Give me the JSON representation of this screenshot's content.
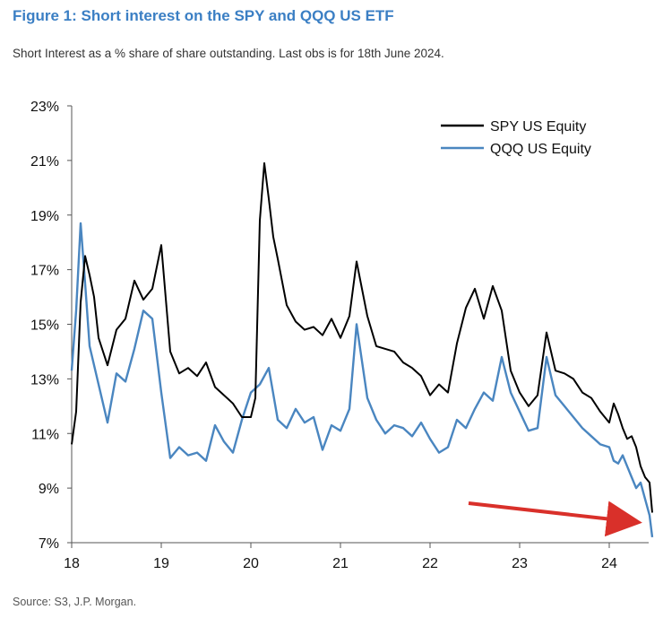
{
  "chart_data": {
    "type": "line",
    "title": "Figure 1: Short interest on the SPY and QQQ US ETF",
    "subtitle": "Short Interest as a % share of share outstanding. Last obs is for 18th June 2024.",
    "source": "Source: S3, J.P. Morgan.",
    "xlabel": "",
    "ylabel": "",
    "ylim": [
      7,
      23
    ],
    "xlim": [
      2018.0,
      2024.5
    ],
    "y_ticks": [
      "23%",
      "21%",
      "19%",
      "17%",
      "15%",
      "13%",
      "11%",
      "9%",
      "7%"
    ],
    "x_ticks": [
      "18",
      "19",
      "20",
      "21",
      "22",
      "23",
      "24"
    ],
    "legend_position": "top-right",
    "annotation": "red arrow pointing to latest observations",
    "series": [
      {
        "name": "SPY US Equity",
        "color": "#000000",
        "x": [
          2018.0,
          2018.05,
          2018.1,
          2018.15,
          2018.2,
          2018.25,
          2018.3,
          2018.4,
          2018.5,
          2018.6,
          2018.7,
          2018.8,
          2018.9,
          2019.0,
          2019.1,
          2019.2,
          2019.3,
          2019.4,
          2019.5,
          2019.6,
          2019.7,
          2019.8,
          2019.9,
          2020.0,
          2020.05,
          2020.1,
          2020.15,
          2020.2,
          2020.25,
          2020.3,
          2020.4,
          2020.5,
          2020.6,
          2020.7,
          2020.8,
          2020.9,
          2021.0,
          2021.1,
          2021.18,
          2021.3,
          2021.4,
          2021.5,
          2021.6,
          2021.7,
          2021.8,
          2021.9,
          2022.0,
          2022.1,
          2022.2,
          2022.3,
          2022.4,
          2022.5,
          2022.6,
          2022.7,
          2022.8,
          2022.9,
          2023.0,
          2023.1,
          2023.2,
          2023.3,
          2023.4,
          2023.5,
          2023.6,
          2023.7,
          2023.8,
          2023.9,
          2024.0,
          2024.05,
          2024.1,
          2024.15,
          2024.2,
          2024.25,
          2024.3,
          2024.35,
          2024.4,
          2024.45,
          2024.48
        ],
        "values": [
          10.6,
          11.8,
          15.8,
          17.5,
          16.8,
          16.0,
          14.5,
          13.5,
          14.8,
          15.2,
          16.6,
          15.9,
          16.3,
          17.9,
          14.0,
          13.2,
          13.4,
          13.1,
          13.6,
          12.7,
          12.4,
          12.1,
          11.6,
          11.6,
          12.3,
          18.8,
          20.9,
          19.6,
          18.2,
          17.4,
          15.7,
          15.1,
          14.8,
          14.9,
          14.6,
          15.2,
          14.5,
          15.3,
          17.3,
          15.3,
          14.2,
          14.1,
          14.0,
          13.6,
          13.4,
          13.1,
          12.4,
          12.8,
          12.5,
          14.3,
          15.6,
          16.3,
          15.2,
          16.4,
          15.5,
          13.3,
          12.5,
          12.0,
          12.4,
          14.7,
          13.3,
          13.2,
          13.0,
          12.5,
          12.3,
          11.8,
          11.4,
          12.1,
          11.7,
          11.2,
          10.8,
          10.9,
          10.5,
          9.8,
          9.4,
          9.2,
          8.1
        ]
      },
      {
        "name": "QQQ US Equity",
        "color": "#4a86c0",
        "x": [
          2018.0,
          2018.05,
          2018.1,
          2018.15,
          2018.2,
          2018.3,
          2018.4,
          2018.5,
          2018.6,
          2018.7,
          2018.8,
          2018.9,
          2019.0,
          2019.1,
          2019.2,
          2019.3,
          2019.4,
          2019.5,
          2019.6,
          2019.7,
          2019.8,
          2019.9,
          2020.0,
          2020.1,
          2020.2,
          2020.3,
          2020.4,
          2020.5,
          2020.6,
          2020.7,
          2020.8,
          2020.9,
          2021.0,
          2021.1,
          2021.18,
          2021.3,
          2021.4,
          2021.5,
          2021.6,
          2021.7,
          2021.8,
          2021.9,
          2022.0,
          2022.1,
          2022.2,
          2022.3,
          2022.4,
          2022.5,
          2022.6,
          2022.7,
          2022.8,
          2022.9,
          2023.0,
          2023.1,
          2023.2,
          2023.3,
          2023.4,
          2023.5,
          2023.6,
          2023.7,
          2023.8,
          2023.9,
          2024.0,
          2024.05,
          2024.1,
          2024.15,
          2024.2,
          2024.25,
          2024.3,
          2024.35,
          2024.4,
          2024.45,
          2024.48
        ],
        "values": [
          13.3,
          15.5,
          18.7,
          16.5,
          14.2,
          12.8,
          11.4,
          13.2,
          12.9,
          14.1,
          15.5,
          15.2,
          12.5,
          10.1,
          10.5,
          10.2,
          10.3,
          10.0,
          11.3,
          10.7,
          10.3,
          11.5,
          12.5,
          12.8,
          13.4,
          11.5,
          11.2,
          11.9,
          11.4,
          11.6,
          10.4,
          11.3,
          11.1,
          11.9,
          15.0,
          12.3,
          11.5,
          11.0,
          11.3,
          11.2,
          10.9,
          11.4,
          10.8,
          10.3,
          10.5,
          11.5,
          11.2,
          11.9,
          12.5,
          12.2,
          13.8,
          12.5,
          11.8,
          11.1,
          11.2,
          13.8,
          12.4,
          12.0,
          11.6,
          11.2,
          10.9,
          10.6,
          10.5,
          10.0,
          9.9,
          10.2,
          9.8,
          9.4,
          9.0,
          9.2,
          8.6,
          8.0,
          7.2
        ]
      }
    ]
  }
}
